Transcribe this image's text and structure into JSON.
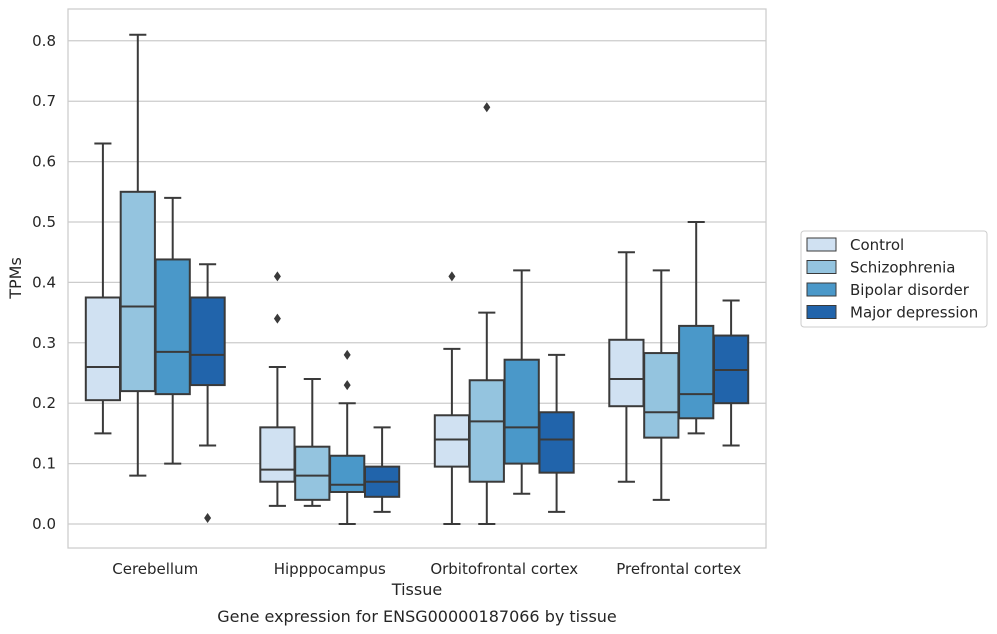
{
  "caption": "Gene expression for ENSG00000187066 by tissue",
  "chart_data": {
    "type": "box",
    "xlabel": "Tissue",
    "ylabel": "TPMs",
    "ylim": [
      -0.04,
      0.85
    ],
    "yticks": [
      0.0,
      0.1,
      0.2,
      0.3,
      0.4,
      0.5,
      0.6,
      0.7,
      0.8
    ],
    "ytick_labels": [
      "0.0",
      "0.1",
      "0.2",
      "0.3",
      "0.4",
      "0.5",
      "0.6",
      "0.7",
      "0.8"
    ],
    "grid": "horizontal",
    "legend_position": "right",
    "categories": [
      "Cerebellum",
      "Hipppocampus",
      "Orbitofrontal cortex",
      "Prefrontal cortex"
    ],
    "series": [
      {
        "name": "Control",
        "color": "#d0e1f2",
        "boxes": [
          {
            "whisker_low": 0.15,
            "q1": 0.205,
            "median": 0.26,
            "q3": 0.375,
            "whisker_high": 0.63,
            "outliers": []
          },
          {
            "whisker_low": 0.03,
            "q1": 0.07,
            "median": 0.09,
            "q3": 0.16,
            "whisker_high": 0.26,
            "outliers": [
              0.34,
              0.41
            ]
          },
          {
            "whisker_low": 0.0,
            "q1": 0.095,
            "median": 0.14,
            "q3": 0.18,
            "whisker_high": 0.29,
            "outliers": [
              0.41
            ]
          },
          {
            "whisker_low": 0.07,
            "q1": 0.195,
            "median": 0.24,
            "q3": 0.305,
            "whisker_high": 0.45,
            "outliers": []
          }
        ]
      },
      {
        "name": "Schizophrenia",
        "color": "#94c4df",
        "boxes": [
          {
            "whisker_low": 0.08,
            "q1": 0.22,
            "median": 0.36,
            "q3": 0.55,
            "whisker_high": 0.81,
            "outliers": []
          },
          {
            "whisker_low": 0.03,
            "q1": 0.04,
            "median": 0.08,
            "q3": 0.128,
            "whisker_high": 0.24,
            "outliers": []
          },
          {
            "whisker_low": 0.0,
            "q1": 0.07,
            "median": 0.17,
            "q3": 0.238,
            "whisker_high": 0.35,
            "outliers": [
              0.69
            ]
          },
          {
            "whisker_low": 0.04,
            "q1": 0.143,
            "median": 0.185,
            "q3": 0.283,
            "whisker_high": 0.42,
            "outliers": []
          }
        ]
      },
      {
        "name": "Bipolar disorder",
        "color": "#4a98c9",
        "boxes": [
          {
            "whisker_low": 0.1,
            "q1": 0.215,
            "median": 0.285,
            "q3": 0.438,
            "whisker_high": 0.54,
            "outliers": []
          },
          {
            "whisker_low": 0.0,
            "q1": 0.053,
            "median": 0.065,
            "q3": 0.113,
            "whisker_high": 0.2,
            "outliers": [
              0.23,
              0.28
            ]
          },
          {
            "whisker_low": 0.05,
            "q1": 0.1,
            "median": 0.16,
            "q3": 0.272,
            "whisker_high": 0.42,
            "outliers": []
          },
          {
            "whisker_low": 0.15,
            "q1": 0.175,
            "median": 0.215,
            "q3": 0.328,
            "whisker_high": 0.5,
            "outliers": []
          }
        ]
      },
      {
        "name": "Major depression",
        "color": "#2164ab",
        "boxes": [
          {
            "whisker_low": 0.13,
            "q1": 0.23,
            "median": 0.28,
            "q3": 0.375,
            "whisker_high": 0.43,
            "outliers": [
              0.01
            ]
          },
          {
            "whisker_low": 0.02,
            "q1": 0.045,
            "median": 0.07,
            "q3": 0.095,
            "whisker_high": 0.16,
            "outliers": []
          },
          {
            "whisker_low": 0.02,
            "q1": 0.085,
            "median": 0.14,
            "q3": 0.185,
            "whisker_high": 0.28,
            "outliers": []
          },
          {
            "whisker_low": 0.13,
            "q1": 0.2,
            "median": 0.255,
            "q3": 0.312,
            "whisker_high": 0.37,
            "outliers": []
          }
        ]
      }
    ]
  }
}
